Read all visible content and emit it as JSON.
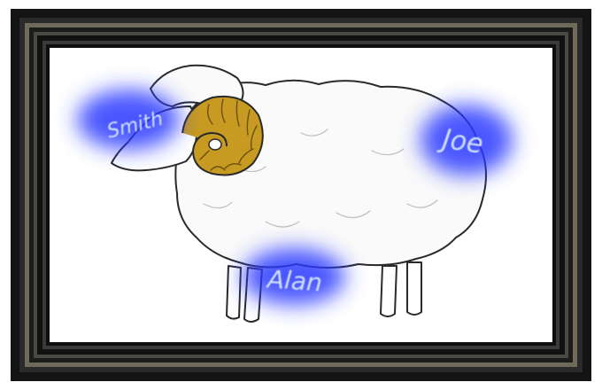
{
  "labels": {
    "smith": "Smith",
    "joe": "Joe",
    "alan": "Alan"
  },
  "colors": {
    "frame_outer": "#141414",
    "frame_band": "#6f6a5a",
    "canvas": "#ffffff",
    "glow": "#2a3bff",
    "label_text": "#cfe0ff",
    "horn": "#c79b22",
    "outline": "#2a2a2a"
  }
}
